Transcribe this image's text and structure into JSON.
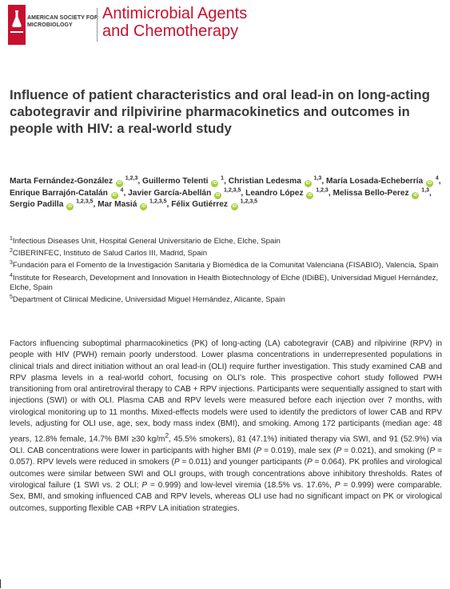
{
  "header": {
    "society_name": "AMERICAN SOCIETY FOR MICROBIOLOGY",
    "journal_line1": "Antimicrobial Agents",
    "journal_line2": "and Chemotherapy",
    "brand_color": "#c8102e"
  },
  "article": {
    "title": "Influence of patient characteristics and oral lead-in on long-acting cabotegravir and rilpivirine pharmacokinetics and outcomes in people with HIV: a real-world study"
  },
  "authors": [
    {
      "name": "Marta Fernández-González",
      "aff": "1,2,3",
      "sep": ", "
    },
    {
      "name": "Guillermo Telenti",
      "aff": "1",
      "sep": ", "
    },
    {
      "name": "Christian Ledesma",
      "aff": "1,3",
      "sep": ", "
    },
    {
      "name": "María Losada-Echeberría",
      "aff": "4",
      "sep": ", "
    },
    {
      "name": "Enrique Barrajón-Catalán",
      "aff": "4",
      "sep": ", "
    },
    {
      "name": "Javier García-Abellán",
      "aff": "1,2,3,5",
      "sep": ", "
    },
    {
      "name": "Leandro López",
      "aff": "1,2,3",
      "sep": ", "
    },
    {
      "name": "Melissa Bello-Perez",
      "aff": "1,3",
      "sep": ", "
    },
    {
      "name": "Sergio Padilla",
      "aff": "1,2,3,5",
      "sep": ", "
    },
    {
      "name": "Mar Masiá",
      "aff": "1,2,3,5",
      "sep": ", "
    },
    {
      "name": "Félix Gutiérrez",
      "aff": "1,2,3,5",
      "sep": ""
    }
  ],
  "orcid_glyph": "iD",
  "affiliations": [
    {
      "num": "1",
      "text": "Infectious Diseases Unit, Hospital General Universitario de Elche, Elche, Spain"
    },
    {
      "num": "2",
      "text": "CIBERINFEC, Instituto de Salud Carlos III, Madrid, Spain"
    },
    {
      "num": "3",
      "text": "Fundación para el Fomento de la Investigación Sanitaria y Biomédica de la Comunitat Valenciana (FISABIO), Valencia, Spain"
    },
    {
      "num": "4",
      "text": "Institute for Research, Development and Innovation in Health Biotechnology of Elche (IDiBE), Universidad Miguel Hernández, Elche, Spain"
    },
    {
      "num": "5",
      "text": "Department of Clinical Medicine, Universidad Miguel Hernández, Alicante, Spain"
    }
  ],
  "abstract": {
    "p01": "Factors influencing suboptimal pharmacokinetics (PK) of long-acting (LA) cabotegravir (CAB) and rilpivirine (RPV) in people with HIV (PWH) remain poorly understood. Lower plasma concentrations in underrepresented populations in clinical trials and direct initiation without an oral lead-in (OLI) require further investigation. This study examined CAB and RPV plasma levels in a real-world cohort, focusing on OLI’s role. This prospective cohort study followed PWH transitioning from oral antiretroviral therapy to CAB + RPV injections. Participants were sequentially assigned to start with injections (SWI) or with OLI. Plasma CAB and RPV levels were measured before each injection over 7 months, with virological monitoring up to 11 months. Mixed-effects models were used to identify the predictors of lower CAB and RPV levels, adjusting for OLI use, age, sex, body mass index (BMI), and smoking. Among 172 participants (median age: 48 years, 12.8% female, 14.7% BMI ≥30 kg/m",
    "sup2": "2",
    "p02": ", 45.5% smokers), 81 (47.1%) initiated therapy via SWI, and 91 (52.9%) via OLI. CAB concentrations were lower in participants with higher BMI (",
    "p_italic": "P",
    "v1": " = 0.019), male sex (",
    "v2": " = 0.021), and smoking (",
    "v3": " = 0.057). RPV levels were reduced in smokers (",
    "v4": " = 0.011) and younger participants (",
    "v5": " = 0.064). PK profiles and virological outcomes were similar between SWI and OLI groups, with trough concentrations above inhibitory thresholds. Rates of virological failure (1 SWI vs. 2 OLI; ",
    "v6": " = 0.999) and low-level viremia (18.5% vs. 17.6%, ",
    "v7": " = 0.999) were comparable. Sex, BMI, and smoking influenced CAB and RPV levels, whereas OLI use had no significant impact on PK or virological outcomes, supporting flexible CAB +RPV LA initiation strategies."
  }
}
